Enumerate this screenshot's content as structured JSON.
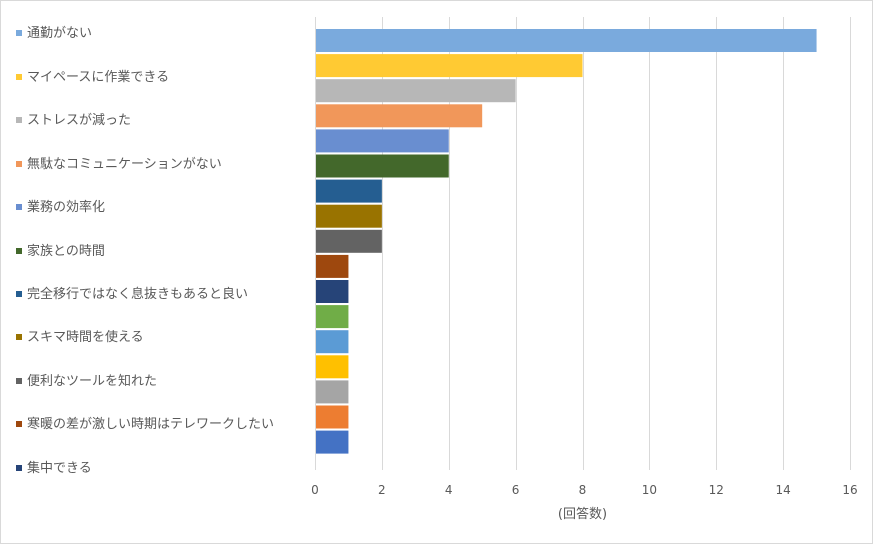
{
  "chart_data": {
    "type": "bar",
    "orientation": "horizontal",
    "xlabel": "(回答数)",
    "xlim": [
      0,
      16
    ],
    "xticks": [
      0,
      2,
      4,
      6,
      8,
      10,
      12,
      14,
      16
    ],
    "grid": "vertical",
    "legend_position": "left",
    "series": [
      {
        "name": "通勤がない",
        "value": 15,
        "color": "#7aaadd"
      },
      {
        "name": "マイペースに作業できる",
        "value": 8,
        "color": "#ffca33"
      },
      {
        "name": "ストレスが減った",
        "value": 6,
        "color": "#b7b7b7"
      },
      {
        "name": "無駄なコミュニケーションがない",
        "value": 5,
        "color": "#f1975a"
      },
      {
        "name": "業務の効率化",
        "value": 4,
        "color": "#698ed0"
      },
      {
        "name": "家族との時間",
        "value": 4,
        "color": "#43682b"
      },
      {
        "name": "完全移行ではなく息抜きもあると良い",
        "value": 2,
        "color": "#255e91"
      },
      {
        "name": "スキマ時間を使える",
        "value": 2,
        "color": "#997300"
      },
      {
        "name": "便利なツールを知れた",
        "value": 2,
        "color": "#636363"
      },
      {
        "name": "寒暖の差が激しい時期はテレワークしたい",
        "value": 1,
        "color": "#9e480e"
      },
      {
        "name": "集中できる",
        "value": 1,
        "color": "#264478"
      },
      {
        "value": 1,
        "color": "#70ad47"
      },
      {
        "value": 1,
        "color": "#5b9bd5"
      },
      {
        "value": 1,
        "color": "#ffc000"
      },
      {
        "value": 1,
        "color": "#a5a5a5"
      },
      {
        "value": 1,
        "color": "#ed7d31"
      },
      {
        "value": 1,
        "color": "#4472c4"
      }
    ]
  }
}
